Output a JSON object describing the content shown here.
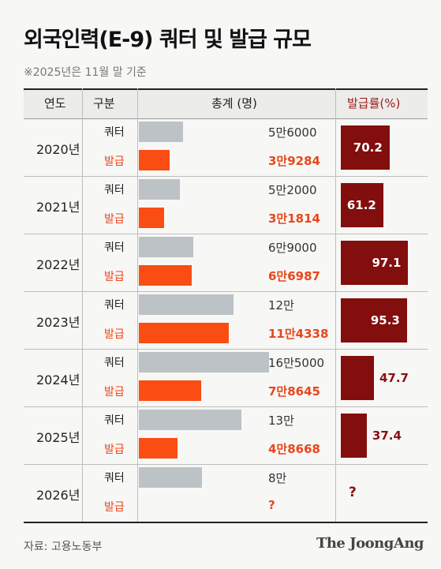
{
  "title": "외국인력(E-9) 쿼터 및 발급 규모",
  "subtitle": "※2025년은 11월 말 기준",
  "headers": {
    "year": "연도",
    "type": "구분",
    "total": "총계 (명)",
    "rate": "발급률(%)"
  },
  "type_labels": {
    "quota": "쿼터",
    "issued": "발급"
  },
  "source": "자료: 고용노동부",
  "logo": "The JoongAng",
  "colors": {
    "quota_bar": "#bcc2c6",
    "issued_bar": "#fa4d14",
    "rate_bar": "#830e0e",
    "issued_text": "#e8471b",
    "rate_text": "#8b1010"
  },
  "chart_data": {
    "type": "bar",
    "title": "외국인력(E-9) 쿼터 및 발급 규모",
    "categories": [
      "2020년",
      "2021년",
      "2022년",
      "2023년",
      "2024년",
      "2025년",
      "2026년"
    ],
    "series": [
      {
        "name": "쿼터",
        "values": [
          56000,
          52000,
          69000,
          120000,
          165000,
          130000,
          80000
        ]
      },
      {
        "name": "발급",
        "values": [
          39284,
          31814,
          66987,
          114338,
          78645,
          48668,
          null
        ]
      }
    ],
    "value_labels": {
      "quota": [
        "5만6000",
        "5만2000",
        "6만9000",
        "12만",
        "16만5000",
        "13만",
        "8만"
      ],
      "issued": [
        "3만9284",
        "3만1814",
        "6만6987",
        "11만4338",
        "7만8645",
        "4만8668",
        "?"
      ]
    },
    "rate": {
      "name": "발급률(%)",
      "values": [
        70.2,
        61.2,
        97.1,
        95.3,
        47.7,
        37.4,
        null
      ],
      "labels": [
        "70.2",
        "61.2",
        "97.1",
        "95.3",
        "47.7",
        "37.4",
        "?"
      ]
    },
    "ylim": [
      0,
      170000
    ],
    "legend": "none",
    "grid": false
  }
}
